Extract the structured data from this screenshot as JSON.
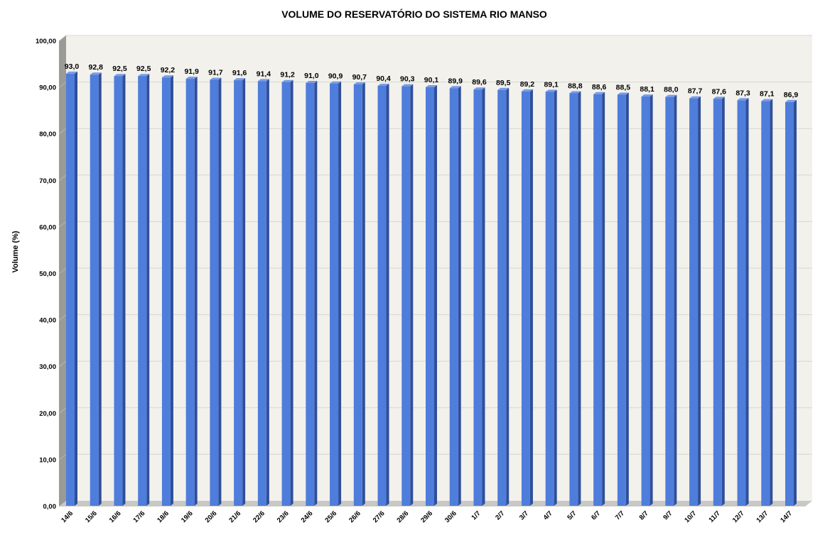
{
  "chart_data": {
    "type": "bar",
    "title": "VOLUME DO RESERVATÓRIO DO SISTEMA RIO MANSO",
    "xlabel": "",
    "ylabel": "Volume (%)",
    "ylim": [
      0,
      100
    ],
    "y_ticks": [
      "0,00",
      "10,00",
      "20,00",
      "30,00",
      "40,00",
      "50,00",
      "60,00",
      "70,00",
      "80,00",
      "90,00",
      "100,00"
    ],
    "grid": true,
    "style": "3d-column",
    "colors": {
      "bar_front": "#4F7DDB",
      "bar_side": "#2F4F9A",
      "bar_top": "#7A9CE6",
      "wall": "#F2F1EC",
      "side_wall": "#9A9A96",
      "floor": "#C8C8C4",
      "grid": "#D6D6D2"
    },
    "categories": [
      "14/6",
      "15/6",
      "16/6",
      "17/6",
      "18/6",
      "19/6",
      "20/6",
      "21/6",
      "22/6",
      "23/6",
      "24/6",
      "25/6",
      "26/6",
      "27/6",
      "28/6",
      "29/6",
      "30/6",
      "1/7",
      "2/7",
      "3/7",
      "4/7",
      "5/7",
      "6/7",
      "7/7",
      "8/7",
      "9/7",
      "10/7",
      "11/7",
      "12/7",
      "13/7",
      "14/7"
    ],
    "values": [
      93.0,
      92.8,
      92.5,
      92.5,
      92.2,
      91.9,
      91.7,
      91.6,
      91.4,
      91.2,
      91.0,
      90.9,
      90.7,
      90.4,
      90.3,
      90.1,
      89.9,
      89.6,
      89.5,
      89.2,
      89.1,
      88.8,
      88.6,
      88.5,
      88.1,
      88.0,
      87.7,
      87.6,
      87.3,
      87.1,
      86.9
    ],
    "value_labels": [
      "93,0",
      "92,8",
      "92,5",
      "92,5",
      "92,2",
      "91,9",
      "91,7",
      "91,6",
      "91,4",
      "91,2",
      "91,0",
      "90,9",
      "90,7",
      "90,4",
      "90,3",
      "90,1",
      "89,9",
      "89,6",
      "89,5",
      "89,2",
      "89,1",
      "88,8",
      "88,6",
      "88,5",
      "88,1",
      "88,0",
      "87,7",
      "87,6",
      "87,3",
      "87,1",
      "86,9"
    ]
  }
}
